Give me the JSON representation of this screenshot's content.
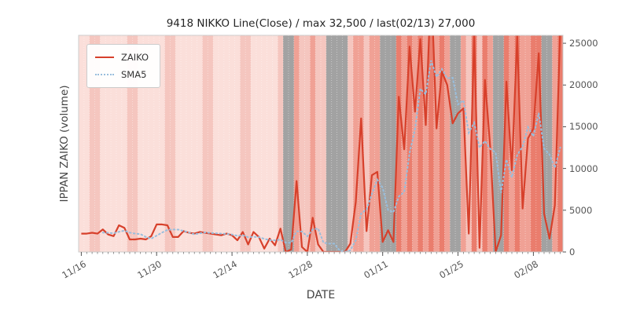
{
  "chart_data": {
    "type": "line",
    "title": "9418 NIKKO Line(Close) / max 32,500 / last(02/13) 27,000",
    "xlabel": "DATE",
    "ylabel": "IPPAN ZAIKO (volume)",
    "ylim": [
      0,
      25000
    ],
    "yticks": [
      0,
      5000,
      10000,
      15000,
      20000,
      25000
    ],
    "n_points": 90,
    "x_tick_indices": [
      0,
      14,
      28,
      42,
      56,
      70,
      84
    ],
    "x_tick_labels": [
      "11/16",
      "11/30",
      "12/14",
      "12/28",
      "01/11",
      "01/25",
      "02/08"
    ],
    "legend": {
      "position": "upper-left",
      "entries": [
        "ZAIKO",
        "SMA5"
      ]
    },
    "series": [
      {
        "name": "ZAIKO",
        "color": "#d7402b",
        "style": "solid",
        "values": [
          2200,
          2200,
          2300,
          2200,
          2700,
          2100,
          1900,
          3200,
          2900,
          1500,
          1500,
          1600,
          1500,
          1900,
          3300,
          3300,
          3200,
          1800,
          1800,
          2500,
          2300,
          2200,
          2400,
          2300,
          2200,
          2100,
          2000,
          2200,
          2000,
          1400,
          2400,
          900,
          2400,
          1800,
          400,
          1600,
          800,
          2800,
          0,
          300,
          8500,
          600,
          0,
          4100,
          900,
          0,
          0,
          0,
          0,
          0,
          1000,
          6000,
          16000,
          2500,
          9200,
          9600,
          1200,
          2600,
          1200,
          18600,
          12300,
          24600,
          16800,
          25500,
          15200,
          32500,
          14800,
          21600,
          20000,
          15400,
          16600,
          17200,
          2200,
          26000,
          500,
          20600,
          12400,
          0,
          2000,
          20400,
          9800,
          25800,
          5200,
          13600,
          14800,
          23800,
          4600,
          1600,
          5600,
          27000
        ]
      },
      {
        "name": "SMA5",
        "color": "#98bedd",
        "style": "dotted",
        "derived": "rolling_mean_of_ZAIKO",
        "window": 5
      }
    ],
    "band_palette": {
      "p0": "#fbdfda",
      "p1": "#f5c6bf",
      "p2": "#f0a195",
      "p3": "#ea7d6d",
      "g": "#a2a2a2"
    },
    "band_codes": [
      "p0",
      "p0",
      "p1",
      "p1",
      "p0",
      "p0",
      "p0",
      "p0",
      "p0",
      "p1",
      "p1",
      "p0",
      "p0",
      "p0",
      "p0",
      "p0",
      "p1",
      "p1",
      "p0",
      "p0",
      "p0",
      "p0",
      "p0",
      "p1",
      "p1",
      "p0",
      "p0",
      "p0",
      "p0",
      "p0",
      "p1",
      "p1",
      "p0",
      "p0",
      "p0",
      "p0",
      "p0",
      "p1",
      "g",
      "g",
      "p2",
      "p1",
      "p1",
      "p2",
      "p1",
      "p1",
      "g",
      "g",
      "g",
      "g",
      "p1",
      "p2",
      "p2",
      "p1",
      "p2",
      "p2",
      "g",
      "g",
      "g",
      "p3",
      "p2",
      "p3",
      "p2",
      "p3",
      "p2",
      "p3",
      "p2",
      "p3",
      "p2",
      "g",
      "g",
      "p2",
      "p1",
      "p3",
      "p1",
      "p3",
      "p2",
      "g",
      "g",
      "p3",
      "p2",
      "p3",
      "p2",
      "p2",
      "p3",
      "p3",
      "g",
      "g",
      "p2",
      "p3"
    ],
    "axis_colors": {
      "tick_text": "#555555",
      "spine": "#cccccc",
      "grid_dash": "#ffffff"
    }
  }
}
